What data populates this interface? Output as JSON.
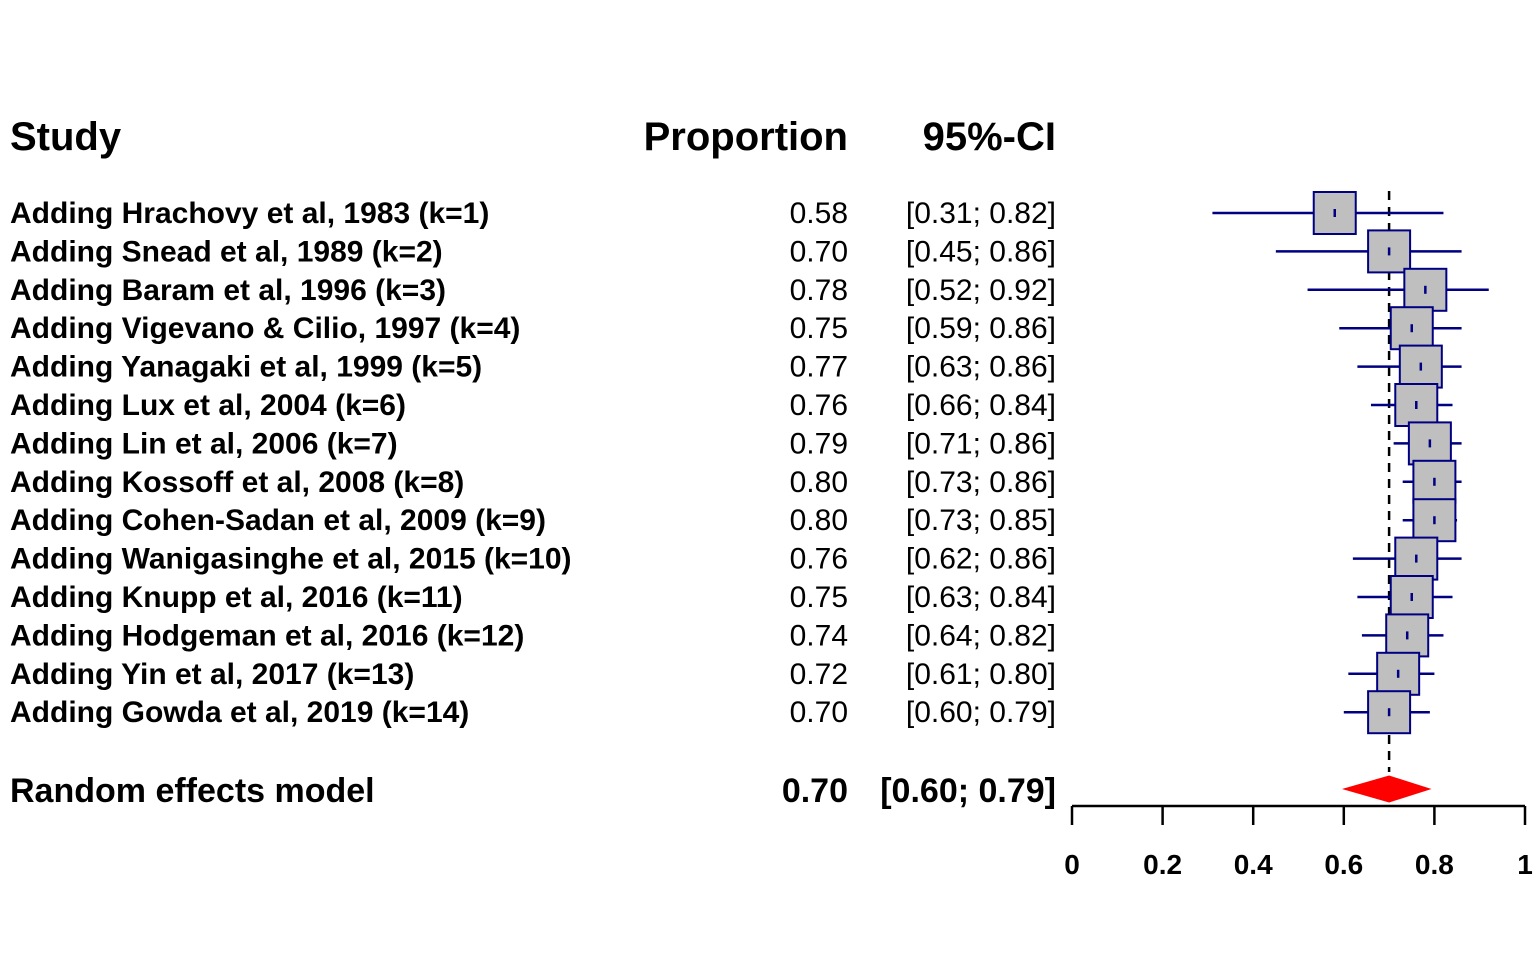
{
  "chart_data": {
    "type": "forest",
    "headers": {
      "study": "Study",
      "estimate": "Proportion",
      "ci": "95%-CI"
    },
    "studies": [
      {
        "label": "Adding Hrachovy et al, 1983 (k=1)",
        "estimate": 0.58,
        "lower": 0.31,
        "upper": 0.82,
        "estimate_text": "0.58",
        "ci_text": "[0.31; 0.82]"
      },
      {
        "label": "Adding Snead et al, 1989 (k=2)",
        "estimate": 0.7,
        "lower": 0.45,
        "upper": 0.86,
        "estimate_text": "0.70",
        "ci_text": "[0.45; 0.86]"
      },
      {
        "label": "Adding Baram et al, 1996 (k=3)",
        "estimate": 0.78,
        "lower": 0.52,
        "upper": 0.92,
        "estimate_text": "0.78",
        "ci_text": "[0.52; 0.92]"
      },
      {
        "label": "Adding Vigevano & Cilio, 1997 (k=4)",
        "estimate": 0.75,
        "lower": 0.59,
        "upper": 0.86,
        "estimate_text": "0.75",
        "ci_text": "[0.59; 0.86]"
      },
      {
        "label": "Adding Yanagaki et al, 1999 (k=5)",
        "estimate": 0.77,
        "lower": 0.63,
        "upper": 0.86,
        "estimate_text": "0.77",
        "ci_text": "[0.63; 0.86]"
      },
      {
        "label": "Adding Lux et al, 2004 (k=6)",
        "estimate": 0.76,
        "lower": 0.66,
        "upper": 0.84,
        "estimate_text": "0.76",
        "ci_text": "[0.66; 0.84]"
      },
      {
        "label": "Adding Lin et al, 2006 (k=7)",
        "estimate": 0.79,
        "lower": 0.71,
        "upper": 0.86,
        "estimate_text": "0.79",
        "ci_text": "[0.71; 0.86]"
      },
      {
        "label": "Adding Kossoff et al, 2008 (k=8)",
        "estimate": 0.8,
        "lower": 0.73,
        "upper": 0.86,
        "estimate_text": "0.80",
        "ci_text": "[0.73; 0.86]"
      },
      {
        "label": "Adding Cohen-Sadan et al, 2009 (k=9)",
        "estimate": 0.8,
        "lower": 0.73,
        "upper": 0.85,
        "estimate_text": "0.80",
        "ci_text": "[0.73; 0.85]"
      },
      {
        "label": "Adding Wanigasinghe et al, 2015 (k=10)",
        "estimate": 0.76,
        "lower": 0.62,
        "upper": 0.86,
        "estimate_text": "0.76",
        "ci_text": "[0.62; 0.86]"
      },
      {
        "label": "Adding Knupp et al, 2016 (k=11)",
        "estimate": 0.75,
        "lower": 0.63,
        "upper": 0.84,
        "estimate_text": "0.75",
        "ci_text": "[0.63; 0.84]"
      },
      {
        "label": "Adding Hodgeman et al, 2016 (k=12)",
        "estimate": 0.74,
        "lower": 0.64,
        "upper": 0.82,
        "estimate_text": "0.74",
        "ci_text": "[0.64; 0.82]"
      },
      {
        "label": "Adding Yin et al, 2017 (k=13)",
        "estimate": 0.72,
        "lower": 0.61,
        "upper": 0.8,
        "estimate_text": "0.72",
        "ci_text": "[0.61; 0.80]"
      },
      {
        "label": "Adding Gowda et al, 2019 (k=14)",
        "estimate": 0.7,
        "lower": 0.6,
        "upper": 0.79,
        "estimate_text": "0.70",
        "ci_text": "[0.60; 0.79]"
      }
    ],
    "pooled": {
      "label": "Random effects model",
      "estimate": 0.7,
      "lower": 0.6,
      "upper": 0.79,
      "estimate_text": "0.70",
      "ci_text": "[0.60; 0.79]"
    },
    "reference_line": 0.7,
    "xlim": [
      0,
      1
    ],
    "x_ticks": [
      0,
      0.2,
      0.4,
      0.6,
      0.8,
      1
    ],
    "x_tick_labels": [
      "0",
      "0.2",
      "0.4",
      "0.6",
      "0.8",
      "1"
    ],
    "colors": {
      "ci_line": "#000080",
      "box_fill": "#bfbfbf",
      "box_stroke": "#000080",
      "diamond": "#ff0000",
      "axis": "#000000"
    }
  }
}
